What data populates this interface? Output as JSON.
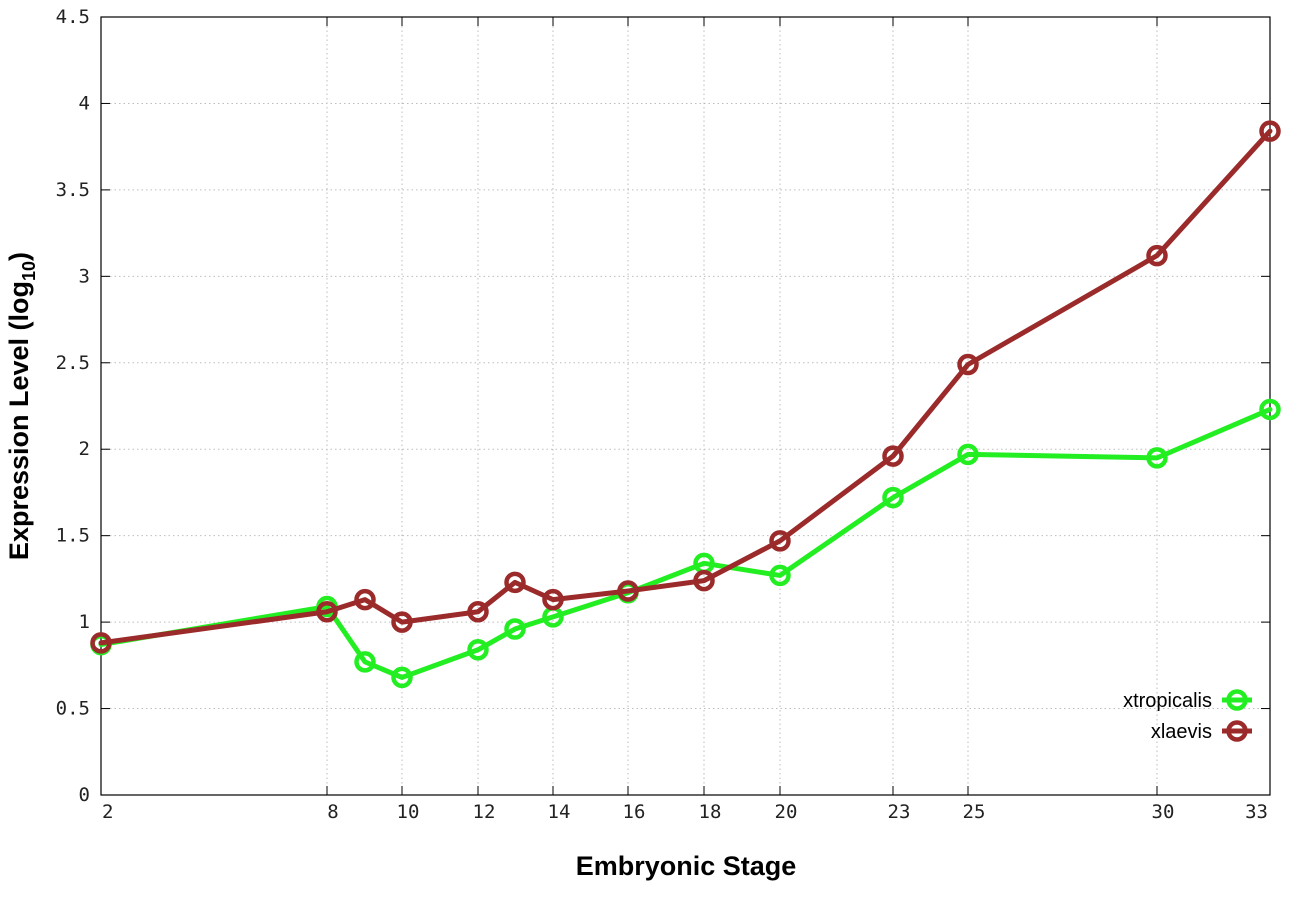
{
  "chart_data": {
    "type": "line",
    "title": "",
    "xlabel": "Embryonic Stage",
    "ylabel": {
      "main": "Expression Level (log",
      "sub": "10",
      "close": ")"
    },
    "x_ticks": [
      "2",
      "8",
      "10",
      "12",
      "14",
      "16",
      "18",
      "20",
      "23",
      "25",
      "30",
      "33"
    ],
    "y_ticks": [
      "0",
      "0.5",
      "1",
      "1.5",
      "2",
      "2.5",
      "3",
      "3.5",
      "4",
      "4.5"
    ],
    "ylim": [
      0,
      4.5
    ],
    "grid": true,
    "legend_position": "bottom-right",
    "x_scale": "stage-order (irregular spacing)",
    "series": [
      {
        "name": "xtropicalis",
        "color": "#22ee22",
        "x": [
          "2",
          "8",
          "9",
          "10",
          "12",
          "13",
          "14",
          "16",
          "18",
          "20",
          "23",
          "25",
          "30",
          "33"
        ],
        "values": [
          0.87,
          1.09,
          0.77,
          0.68,
          0.84,
          0.96,
          1.03,
          1.17,
          1.34,
          1.27,
          1.72,
          1.97,
          1.95,
          2.23
        ]
      },
      {
        "name": "xlaevis",
        "color": "#9b2a2a",
        "x": [
          "2",
          "8",
          "9",
          "10",
          "12",
          "13",
          "14",
          "16",
          "18",
          "20",
          "23",
          "25",
          "30",
          "33"
        ],
        "values": [
          0.88,
          1.06,
          1.13,
          1.0,
          1.06,
          1.23,
          1.13,
          1.18,
          1.24,
          1.47,
          1.96,
          2.49,
          3.12,
          3.84
        ]
      }
    ]
  }
}
